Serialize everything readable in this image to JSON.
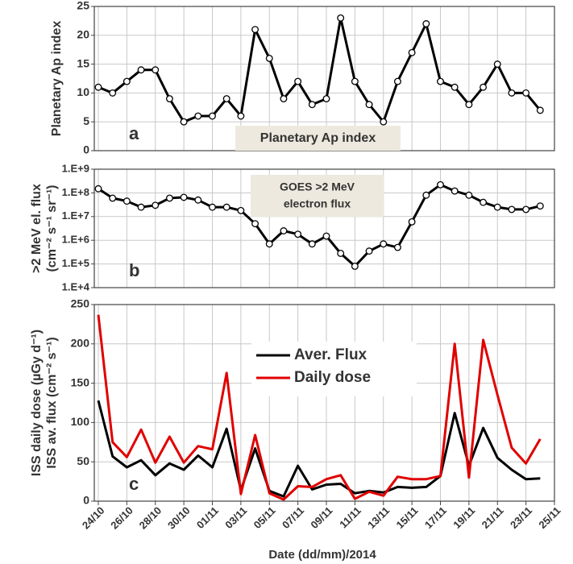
{
  "chart_data": [
    {
      "type": "line",
      "panel_label": "a",
      "ylabel": "Planetary Ap index",
      "annotation": [
        "Planetary Ap index"
      ],
      "ylim": [
        0,
        25
      ],
      "yticks": [
        0,
        5,
        10,
        15,
        20,
        25
      ],
      "grid": true,
      "markers": true,
      "series": [
        {
          "color": "#000000",
          "values": [
            11,
            10,
            12,
            14,
            14,
            9,
            5,
            6,
            6,
            9,
            6,
            21,
            16,
            9,
            12,
            8,
            9,
            23,
            12,
            8,
            5,
            12,
            17,
            22,
            12,
            11,
            8,
            11,
            15,
            10,
            10,
            7,
            null
          ]
        }
      ]
    },
    {
      "type": "line",
      "panel_label": "b",
      "ylabel": [
        ">2 MeV el. flux",
        "(cm⁻² s⁻¹ sr⁻¹)"
      ],
      "annotation": [
        "GOES >2 MeV",
        "electron flux"
      ],
      "log_scale": true,
      "ylim": [
        10000,
        1000000000
      ],
      "yticks": [
        {
          "value": 10000,
          "label": "1.E+4"
        },
        {
          "value": 100000,
          "label": "1.E+5"
        },
        {
          "value": 1000000,
          "label": "1.E+6"
        },
        {
          "value": 10000000,
          "label": "1.E+7"
        },
        {
          "value": 100000000,
          "label": "1.E+8"
        },
        {
          "value": 1000000000,
          "label": "1.E+9"
        }
      ],
      "grid": true,
      "markers": true,
      "series": [
        {
          "color": "#000000",
          "values": [
            150000000,
            60000000,
            45000000,
            25000000,
            30000000,
            60000000,
            65000000,
            50000000,
            25000000,
            25000000,
            18000000,
            5000000,
            700000,
            2500000,
            1800000,
            700000,
            1500000,
            280000,
            80000,
            350000,
            700000,
            500000,
            6000000,
            80000000,
            220000000,
            120000000,
            80000000,
            40000000,
            25000000,
            20000000,
            20000000,
            28000000,
            null
          ]
        }
      ]
    },
    {
      "type": "line",
      "panel_label": "c",
      "ylabel": [
        "ISS daily dose (µGy d⁻¹)",
        "ISS av. flux (cm⁻² s⁻¹)"
      ],
      "xlabel": "Date (dd/mm)/2014",
      "categories": [
        "24/10",
        null,
        "26/10",
        null,
        "28/10",
        null,
        "30/10",
        null,
        "01/11",
        null,
        "03/11",
        null,
        "05/11",
        null,
        "07/11",
        null,
        "09/11",
        null,
        "11/11",
        null,
        "13/11",
        null,
        "15/11",
        null,
        "17/11",
        null,
        "19/11",
        null,
        "21/11",
        null,
        "23/11",
        null,
        "25/11"
      ],
      "ylim": [
        0,
        250
      ],
      "yticks": [
        0,
        50,
        100,
        150,
        200,
        250
      ],
      "grid": true,
      "markers": false,
      "series": [
        {
          "name": "Aver. Flux",
          "color": "#000000",
          "values": [
            128,
            57,
            43,
            52,
            33,
            48,
            40,
            58,
            43,
            92,
            14,
            67,
            13,
            6,
            45,
            15,
            21,
            22,
            10,
            13,
            11,
            18,
            17,
            18,
            32,
            112,
            45,
            93,
            55,
            40,
            28,
            29,
            null
          ]
        },
        {
          "name": "Daily dose",
          "color": "#e00000",
          "values": [
            237,
            75,
            56,
            91,
            49,
            82,
            49,
            70,
            66,
            163,
            9,
            84,
            10,
            2,
            19,
            18,
            28,
            33,
            3,
            12,
            7,
            31,
            28,
            28,
            32,
            200,
            30,
            205,
            135,
            68,
            48,
            79,
            null
          ]
        }
      ]
    }
  ]
}
